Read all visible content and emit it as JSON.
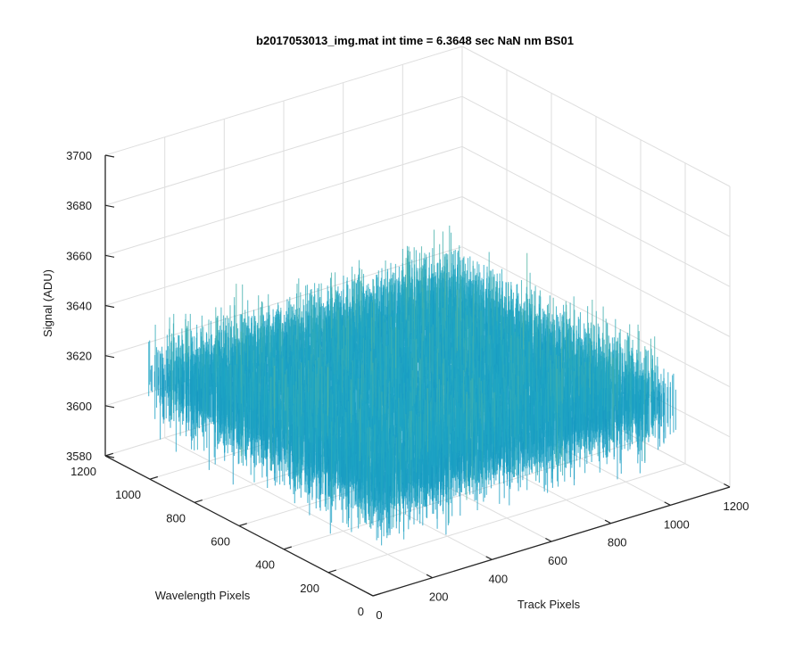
{
  "chart_data": {
    "type": "surface",
    "title": "b2017053013_img.mat int time = 6.3648 sec  NaN nm BS01",
    "xlabel": "Track Pixels",
    "ylabel": "Wavelength Pixels",
    "zlabel": "Signal (ADU)",
    "xlim": [
      0,
      1200
    ],
    "ylim": [
      0,
      1200
    ],
    "zlim": [
      3580,
      3700
    ],
    "x_ticks": [
      "0",
      "200",
      "400",
      "600",
      "800",
      "1000",
      "1200"
    ],
    "y_ticks": [
      "0",
      "200",
      "400",
      "600",
      "800",
      "1000",
      "1200"
    ],
    "z_ticks": [
      "3580",
      "3600",
      "3620",
      "3640",
      "3660",
      "3680",
      "3700"
    ],
    "grid": true,
    "view": "3d-default",
    "colormap": "parula",
    "surface": {
      "x_range": [
        0,
        1024
      ],
      "y_range": [
        0,
        1024
      ],
      "mean_signal": 3620,
      "min_signal": 3585,
      "max_signal": 3665
    },
    "colors": {
      "low": "#0072bd",
      "mid": "#1fa6c4",
      "high": "#d7d94a"
    }
  }
}
